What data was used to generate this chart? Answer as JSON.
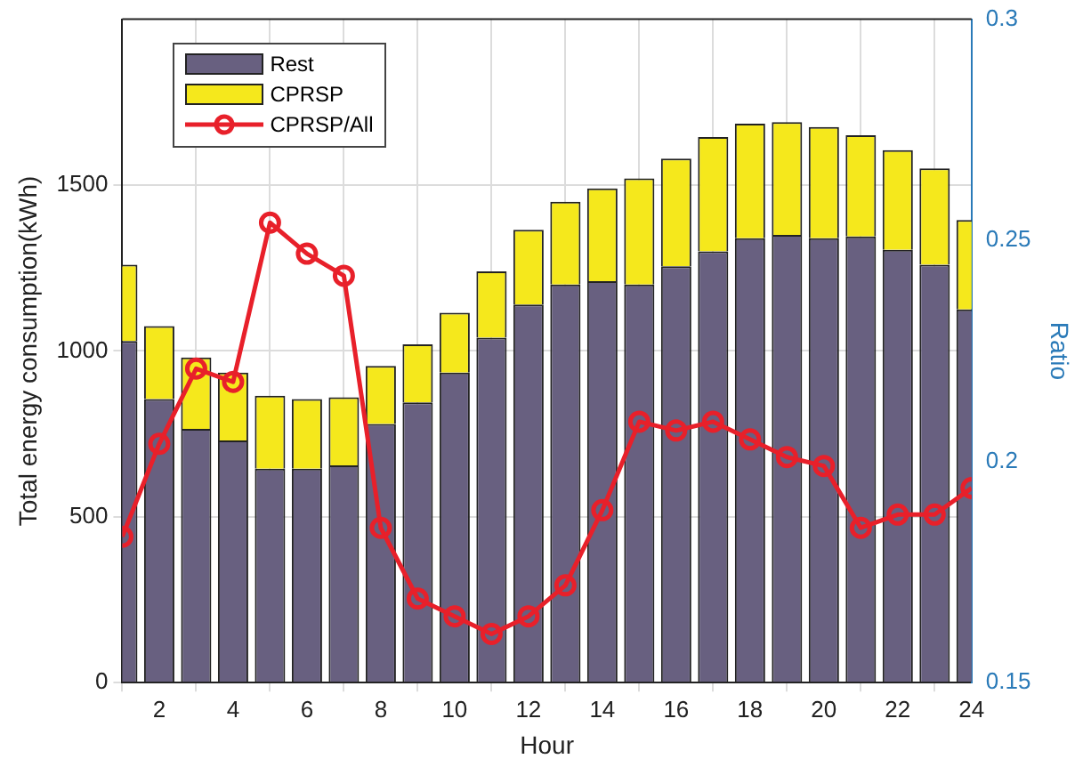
{
  "chart_data": {
    "type": "bar",
    "stacked": true,
    "xlabel": "Hour",
    "ylabel": "Total energy consumption(kWh)",
    "y2label": "Ratio",
    "x": [
      1,
      2,
      3,
      4,
      5,
      6,
      7,
      8,
      9,
      10,
      11,
      12,
      13,
      14,
      15,
      16,
      17,
      18,
      19,
      20,
      21,
      22,
      23,
      24
    ],
    "xlim": [
      1,
      24
    ],
    "xticks": [
      2,
      4,
      6,
      8,
      10,
      12,
      14,
      16,
      18,
      20,
      22,
      24
    ],
    "ylim": [
      0,
      2000
    ],
    "yticks": [
      0,
      500,
      1000,
      1500
    ],
    "y2lim": [
      0.15,
      0.3
    ],
    "y2ticks": [
      0.15,
      0.2,
      0.25,
      0.3
    ],
    "series": [
      {
        "name": "Rest",
        "color": "#686080",
        "values": [
          1030,
          855,
          765,
          730,
          645,
          645,
          655,
          780,
          845,
          935,
          1040,
          1140,
          1200,
          1210,
          1200,
          1255,
          1300,
          1340,
          1350,
          1340,
          1345,
          1305,
          1260,
          1125
        ]
      },
      {
        "name": "CPRSP",
        "color": "#f5e81c",
        "values": [
          230,
          220,
          215,
          205,
          220,
          210,
          205,
          175,
          175,
          180,
          200,
          225,
          250,
          280,
          320,
          325,
          345,
          345,
          340,
          335,
          305,
          300,
          290,
          270
        ]
      },
      {
        "name": "CPRSP/All",
        "type": "line",
        "axis": "y2",
        "color": "#e8202a",
        "marker": "circle",
        "line_style": "solid",
        "values": [
          0.183,
          0.204,
          0.221,
          0.218,
          0.254,
          0.247,
          0.242,
          0.185,
          0.169,
          0.165,
          0.161,
          0.165,
          0.172,
          0.189,
          0.209,
          0.207,
          0.209,
          0.205,
          0.201,
          0.199,
          0.185,
          0.188,
          0.188,
          0.194
        ]
      }
    ],
    "grid": true,
    "legend": "top left"
  }
}
